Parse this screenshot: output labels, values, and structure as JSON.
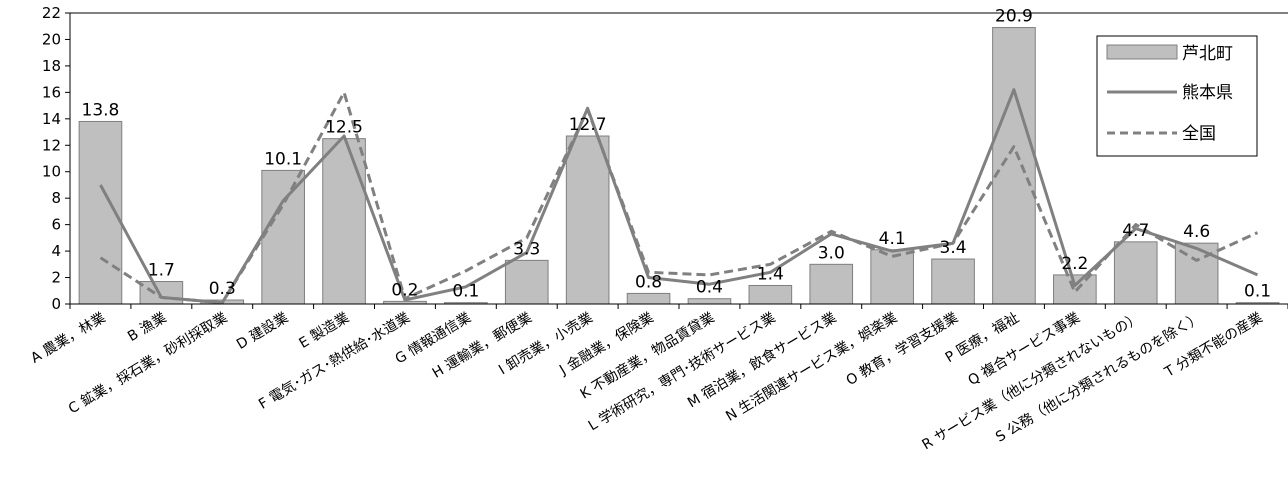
{
  "chart_data": {
    "type": "bar",
    "categories": [
      "A 農業，林業",
      "B 漁業",
      "C 鉱業，採石業，砂利採取業",
      "D 建設業",
      "E 製造業",
      "F 電気･ガス･熱供給･水道業",
      "G 情報通信業",
      "H 運輸業，郵便業",
      "I 卸売業，小売業",
      "J 金融業，保険業",
      "K 不動産業，物品賃貸業",
      "L 学術研究，専門･技術サービス業",
      "M 宿泊業，飲食サービス業",
      "N 生活関連サービス業，娯楽業",
      "O 教育，学習支援業",
      "P 医療，福祉",
      "Q 複合サービス事業",
      "R サービス業（他に分類されないもの）",
      "S 公務（他に分類されるものを除く）",
      "T 分類不能の産業"
    ],
    "series": [
      {
        "name": "芦北町",
        "kind": "bar",
        "values": [
          13.8,
          1.7,
          0.3,
          10.1,
          12.5,
          0.2,
          0.1,
          3.3,
          12.7,
          0.8,
          0.4,
          1.4,
          3.0,
          4.1,
          3.4,
          20.9,
          2.2,
          4.7,
          4.6,
          0.1
        ],
        "labels": [
          "13.8",
          "1.7",
          "0.3",
          "10.1",
          "12.5",
          "0.2",
          "0.1",
          "3.3",
          "12.7",
          "0.8",
          "0.4",
          "1.4",
          "3.0",
          "4.1",
          "3.4",
          "20.9",
          "2.2",
          "4.7",
          "4.6",
          "0.1"
        ]
      },
      {
        "name": "熊本県",
        "kind": "line",
        "values": [
          9.0,
          0.5,
          0.1,
          7.8,
          12.7,
          0.3,
          1.3,
          3.9,
          14.8,
          2.0,
          1.5,
          2.4,
          5.3,
          4.0,
          4.6,
          16.2,
          1.4,
          5.7,
          4.2,
          2.2
        ]
      },
      {
        "name": "全国",
        "kind": "dashed-line",
        "values": [
          3.5,
          0.5,
          0.1,
          7.5,
          16.0,
          0.4,
          2.5,
          5.0,
          14.7,
          2.4,
          2.2,
          3.0,
          5.5,
          3.6,
          4.6,
          11.9,
          0.9,
          6.0,
          3.3,
          5.4
        ]
      }
    ],
    "ylim": [
      0,
      22
    ],
    "yticks": [
      0,
      2,
      4,
      6,
      8,
      10,
      12,
      14,
      16,
      18,
      20,
      22
    ],
    "grid": false,
    "legend_position": "top-right",
    "colors": {
      "bar_fill": "#bfbfbf",
      "bar_stroke": "#7f7f7f",
      "line": "#808080",
      "axis": "#000000"
    }
  }
}
